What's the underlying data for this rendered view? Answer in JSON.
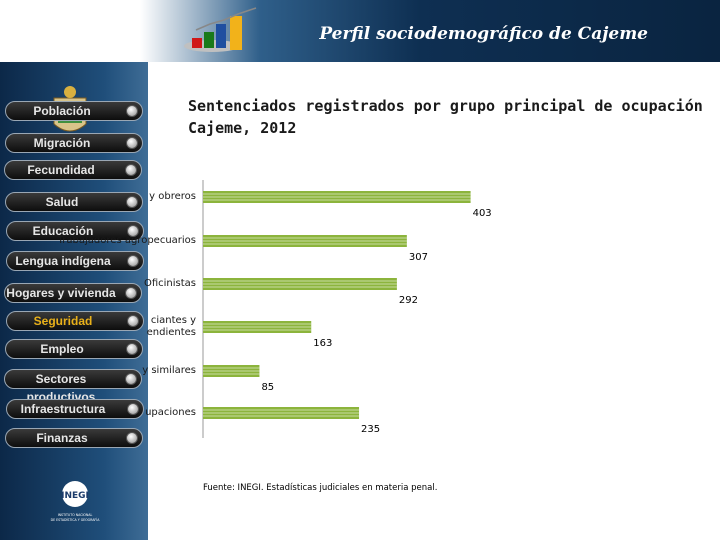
{
  "header": {
    "title": "Perfil sociodemográfico de Cajeme"
  },
  "nav": {
    "items": [
      {
        "label": "Población",
        "active": false
      },
      {
        "label": "Migración",
        "active": false
      },
      {
        "label": "Fecundidad",
        "active": false
      },
      {
        "label": "Salud",
        "active": false
      },
      {
        "label": "Educación",
        "active": false
      },
      {
        "label": "Lengua indígena",
        "active": false
      },
      {
        "label": "Hogares y vivienda",
        "active": false
      },
      {
        "label": "Seguridad",
        "active": true
      },
      {
        "label": "Empleo",
        "active": false
      },
      {
        "label": "Sectores productivos",
        "active": false
      },
      {
        "label": "Infraestructura",
        "active": false
      },
      {
        "label": "Finanzas",
        "active": false
      }
    ]
  },
  "footer": {
    "logo_text": "INEGI",
    "logo_caption": "INSTITUTO NACIONAL DE ESTADÍSTICA Y GEOGRAFÍA"
  },
  "chart_data": {
    "type": "bar",
    "orientation": "horizontal",
    "title": "Sentenciados registrados por grupo principal de ocupación\nCajeme, 2012",
    "categories": [
      "Artesanos y obreros",
      "Trabajadores agropecuarios",
      "Oficinistas",
      "Comerciantes y dependientes",
      "Operadores y similares",
      "Otras ocupaciones"
    ],
    "visible_category_text": [
      "y obreros",
      "Trabajadores agropecuarios",
      "Oficinistas",
      "ciantes y\nendientes",
      "y similares",
      "upaciones"
    ],
    "values": [
      403,
      307,
      292,
      163,
      85,
      235
    ],
    "bar_color": "#8cb43c",
    "source": "Fuente: INEGI. Estadísticas judiciales en materia penal."
  },
  "colors": {
    "accent": "#e9b11a",
    "bar": "#8cb43c",
    "header_dark": "#0a2440"
  }
}
